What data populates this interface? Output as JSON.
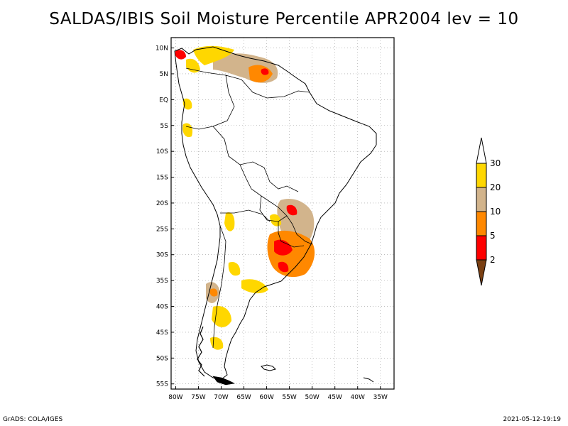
{
  "title": "SALDAS/IBIS Soil Moisture Percentile APR2004 lev = 10",
  "footer": {
    "left": "GrADS: COLA/IGES",
    "right": "2021-05-12-19:19"
  },
  "map": {
    "lon_range": [
      -81,
      -32
    ],
    "lat_range": [
      -56,
      12
    ],
    "lon_ticks": [
      {
        "value": -80,
        "label": "80W"
      },
      {
        "value": -75,
        "label": "75W"
      },
      {
        "value": -70,
        "label": "70W"
      },
      {
        "value": -65,
        "label": "65W"
      },
      {
        "value": -60,
        "label": "60W"
      },
      {
        "value": -55,
        "label": "55W"
      },
      {
        "value": -50,
        "label": "50W"
      },
      {
        "value": -45,
        "label": "45W"
      },
      {
        "value": -40,
        "label": "40W"
      },
      {
        "value": -35,
        "label": "35W"
      }
    ],
    "lat_ticks": [
      {
        "value": 10,
        "label": "10N"
      },
      {
        "value": 5,
        "label": "5N"
      },
      {
        "value": 0,
        "label": "EQ"
      },
      {
        "value": -5,
        "label": "5S"
      },
      {
        "value": -10,
        "label": "10S"
      },
      {
        "value": -15,
        "label": "15S"
      },
      {
        "value": -20,
        "label": "20S"
      },
      {
        "value": -25,
        "label": "25S"
      },
      {
        "value": -30,
        "label": "30S"
      },
      {
        "value": -35,
        "label": "35S"
      },
      {
        "value": -40,
        "label": "40S"
      },
      {
        "value": -45,
        "label": "45S"
      },
      {
        "value": -50,
        "label": "50S"
      },
      {
        "value": -55,
        "label": "55S"
      }
    ],
    "grid": true
  },
  "colorbar": {
    "classes": [
      {
        "range": "below 2",
        "color": "#7a3f12"
      },
      {
        "range": "2-5",
        "color": "#ff0000"
      },
      {
        "range": "5-10",
        "color": "#ff8800"
      },
      {
        "range": "10-20",
        "color": "#d2b48c"
      },
      {
        "range": "20-30",
        "color": "#ffd700"
      },
      {
        "range": "above 30",
        "color": "#ffffff"
      }
    ],
    "labels": [
      "2",
      "5",
      "10",
      "20",
      "30"
    ]
  }
}
